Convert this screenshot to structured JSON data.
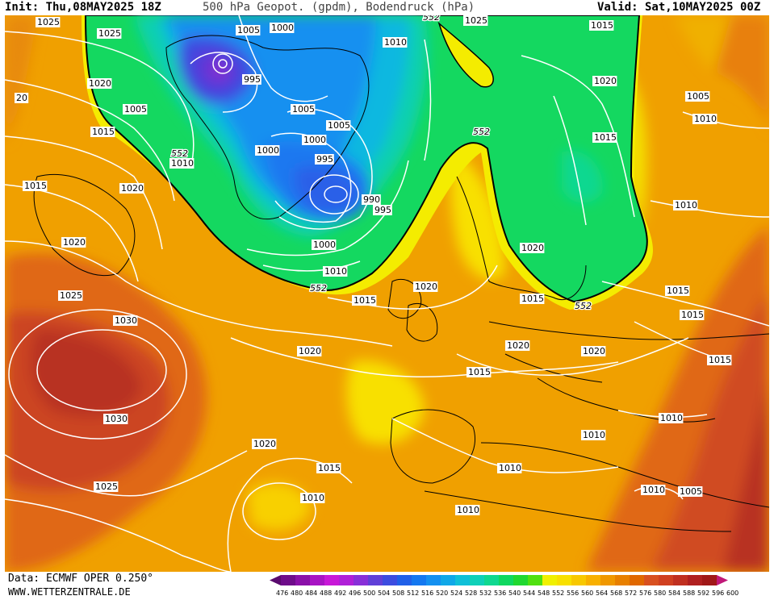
{
  "header": {
    "init": "Init: Thu,08MAY2025 18Z",
    "title": "500 hPa Geopot. (gpdm), Bodendruck (hPa)",
    "valid": "Valid: Sat,10MAY2025 00Z"
  },
  "footer": {
    "source": "Data: ECMWF OPER 0.250°",
    "website": "WWW.WETTERZENTRALE.DE"
  },
  "legend": {
    "ticks": [
      "476",
      "480",
      "484",
      "488",
      "492",
      "496",
      "500",
      "504",
      "508",
      "512",
      "516",
      "520",
      "524",
      "528",
      "532",
      "536",
      "540",
      "544",
      "548",
      "552",
      "556",
      "560",
      "564",
      "568",
      "572",
      "576",
      "580",
      "584",
      "588",
      "592",
      "596",
      "600"
    ],
    "colors": [
      "#5a0a6e",
      "#6e0c8a",
      "#8a10a8",
      "#a814c4",
      "#c818d8",
      "#b020d8",
      "#8830d8",
      "#6040d8",
      "#3c4ce0",
      "#2060e8",
      "#1478f0",
      "#1490f0",
      "#10a8e8",
      "#10c0d8",
      "#10d0b8",
      "#10d890",
      "#10d860",
      "#20d830",
      "#50e010",
      "#f0f000",
      "#f8e000",
      "#f8c800",
      "#f8b000",
      "#f09800",
      "#e88000",
      "#e06800",
      "#d85020",
      "#d04020",
      "#c03020",
      "#b02020",
      "#a01818",
      "#c01878"
    ]
  },
  "map": {
    "colors": {
      "low_500": "#4830d0",
      "trough_blue": "#1a8cf0",
      "green_540": "#14d860",
      "yellow_552": "#f4f000",
      "orange": "#f4b000",
      "ridge": "#e07010",
      "high": "#c84020",
      "isobar": "#ffffff",
      "coast": "#000000"
    },
    "contour_552_labels": [
      "552",
      "552",
      "552",
      "552",
      "552"
    ],
    "isobar_labels": [
      "1025",
      "1025",
      "1020",
      "1005",
      "1015",
      "1010",
      "1015",
      "1020",
      "1020",
      "1025",
      "1030",
      "1030",
      "1020",
      "1025",
      "1020",
      "1015",
      "1010",
      "1000",
      "995",
      "1005",
      "1000",
      "995",
      "1005",
      "1000",
      "990",
      "995",
      "1000",
      "1005",
      "1010",
      "1015",
      "1010",
      "1025",
      "1015",
      "1020",
      "1015",
      "1005",
      "1010",
      "1010",
      "1020",
      "1020",
      "1015",
      "1020",
      "1020",
      "1015",
      "1010",
      "1015",
      "1015",
      "1015",
      "1010",
      "1010",
      "1010",
      "1010",
      "1005",
      "20"
    ]
  }
}
